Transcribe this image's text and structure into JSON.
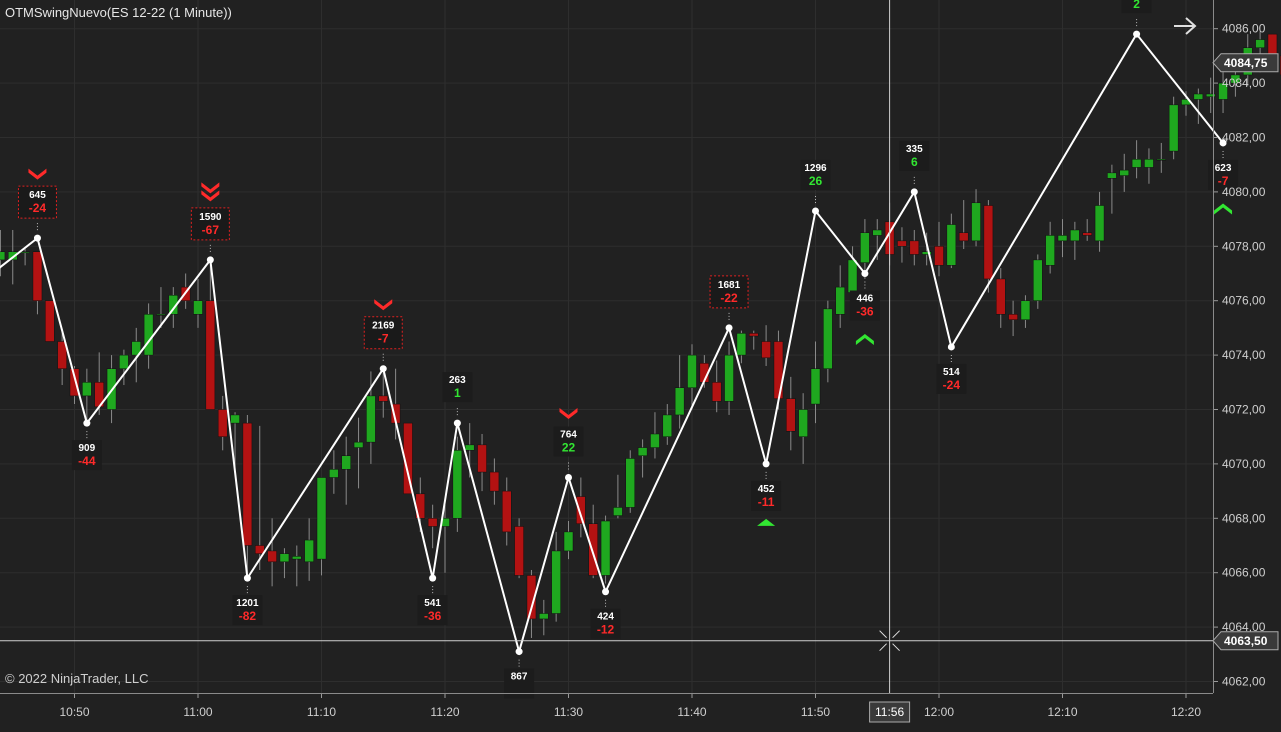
{
  "window": {
    "title": "OTMSwingNuevo(ES 12-22 (1 Minute))",
    "copyright": "© 2022 NinjaTrader, LLC"
  },
  "colors": {
    "background": "#212121",
    "grid": "#2e2e2e",
    "up_candle": "#1fa81f",
    "down_candle": "#b31212",
    "wick": "#8a8a8a",
    "swing_line": "#ffffff",
    "label_up": "#32e632",
    "label_down": "#ff2a2a",
    "axis_text": "#cfcfcf"
  },
  "chart_data": {
    "type": "candlestick",
    "ylim": [
      4061.6,
      4087.3
    ],
    "y_ticks": [
      "4062,00",
      "4064,00",
      "4066,00",
      "4068,00",
      "4070,00",
      "4072,00",
      "4074,00",
      "4076,00",
      "4078,00",
      "4080,00",
      "4082,00",
      "4084,00",
      "4086,00"
    ],
    "x_ticks": [
      {
        "label": "10:50",
        "min": 50
      },
      {
        "label": "11:00",
        "min": 60
      },
      {
        "label": "11:10",
        "min": 70
      },
      {
        "label": "11:20",
        "min": 80
      },
      {
        "label": "11:30",
        "min": 90
      },
      {
        "label": "11:40",
        "min": 100
      },
      {
        "label": "11:50",
        "min": 110
      },
      {
        "label": "12:00",
        "min": 120
      },
      {
        "label": "12:10",
        "min": 130
      },
      {
        "label": "12:20",
        "min": 140
      }
    ],
    "current_price": "4084,75",
    "crosshair_price": "4063,50",
    "crosshair_time": "11:56",
    "crosshair": {
      "min": 116,
      "price": 4063.5
    },
    "candles": [
      {
        "m": 43,
        "o": 4077.5,
        "h": 4078.2,
        "l": 4076.9,
        "c": 4077.6
      },
      {
        "m": 44,
        "o": 4077.5,
        "h": 4078.6,
        "l": 4076.9,
        "c": 4077.8
      },
      {
        "m": 45,
        "o": 4077.5,
        "h": 4078.6,
        "l": 4076.6,
        "c": 4077.8
      },
      {
        "m": 46,
        "o": 4077.8,
        "h": 4077.9,
        "l": 4077.3,
        "c": 4077.8
      },
      {
        "m": 47,
        "o": 4077.8,
        "h": 4077.8,
        "l": 4075.5,
        "c": 4076.0
      },
      {
        "m": 48,
        "o": 4076.0,
        "h": 4076.0,
        "l": 4074.5,
        "c": 4074.5
      },
      {
        "m": 49,
        "o": 4074.5,
        "h": 4074.9,
        "l": 4072.9,
        "c": 4073.5
      },
      {
        "m": 50,
        "o": 4073.5,
        "h": 4073.6,
        "l": 4072.2,
        "c": 4072.5
      },
      {
        "m": 51,
        "o": 4072.5,
        "h": 4073.5,
        "l": 4071.5,
        "c": 4073.0
      },
      {
        "m": 52,
        "o": 4073.0,
        "h": 4074.1,
        "l": 4071.8,
        "c": 4072.1
      },
      {
        "m": 53,
        "o": 4072.0,
        "h": 4074.0,
        "l": 4071.5,
        "c": 4073.5
      },
      {
        "m": 54,
        "o": 4073.5,
        "h": 4074.2,
        "l": 4072.9,
        "c": 4074.0
      },
      {
        "m": 55,
        "o": 4074.0,
        "h": 4075.0,
        "l": 4073.0,
        "c": 4074.5
      },
      {
        "m": 56,
        "o": 4074.0,
        "h": 4075.9,
        "l": 4073.5,
        "c": 4075.5
      },
      {
        "m": 57,
        "o": 4075.5,
        "h": 4076.5,
        "l": 4075.0,
        "c": 4075.5
      },
      {
        "m": 58,
        "o": 4075.5,
        "h": 4076.5,
        "l": 4075.0,
        "c": 4076.2
      },
      {
        "m": 59,
        "o": 4076.5,
        "h": 4077.0,
        "l": 4075.7,
        "c": 4076.0
      },
      {
        "m": 60,
        "o": 4075.5,
        "h": 4076.8,
        "l": 4075.0,
        "c": 4076.0
      },
      {
        "m": 61,
        "o": 4076.0,
        "h": 4077.5,
        "l": 4072.0,
        "c": 4072.0
      },
      {
        "m": 62,
        "o": 4072.0,
        "h": 4072.5,
        "l": 4070.5,
        "c": 4071.0
      },
      {
        "m": 63,
        "o": 4071.5,
        "h": 4071.9,
        "l": 4069.8,
        "c": 4071.8
      },
      {
        "m": 64,
        "o": 4071.5,
        "h": 4071.8,
        "l": 4065.9,
        "c": 4067.0
      },
      {
        "m": 65,
        "o": 4067.0,
        "h": 4071.4,
        "l": 4066.1,
        "c": 4066.7
      },
      {
        "m": 66,
        "o": 4066.8,
        "h": 4068.0,
        "l": 4065.5,
        "c": 4066.4
      },
      {
        "m": 67,
        "o": 4066.4,
        "h": 4066.9,
        "l": 4065.8,
        "c": 4066.7
      },
      {
        "m": 68,
        "o": 4066.5,
        "h": 4067.0,
        "l": 4065.5,
        "c": 4066.6
      },
      {
        "m": 69,
        "o": 4066.4,
        "h": 4068.0,
        "l": 4065.7,
        "c": 4067.2
      },
      {
        "m": 70,
        "o": 4066.5,
        "h": 4069.5,
        "l": 4065.9,
        "c": 4069.5
      },
      {
        "m": 71,
        "o": 4069.5,
        "h": 4070.5,
        "l": 4068.9,
        "c": 4069.8
      },
      {
        "m": 72,
        "o": 4069.8,
        "h": 4071.0,
        "l": 4068.5,
        "c": 4070.3
      },
      {
        "m": 73,
        "o": 4070.6,
        "h": 4071.7,
        "l": 4069.1,
        "c": 4070.8
      },
      {
        "m": 74,
        "o": 4070.8,
        "h": 4073.4,
        "l": 4070.0,
        "c": 4072.5
      },
      {
        "m": 75,
        "o": 4072.5,
        "h": 4073.5,
        "l": 4071.7,
        "c": 4072.3
      },
      {
        "m": 76,
        "o": 4072.2,
        "h": 4073.5,
        "l": 4070.9,
        "c": 4071.5
      },
      {
        "m": 77,
        "o": 4071.5,
        "h": 4071.5,
        "l": 4069.0,
        "c": 4068.9
      },
      {
        "m": 78,
        "o": 4068.9,
        "h": 4069.5,
        "l": 4067.5,
        "c": 4068.0
      },
      {
        "m": 79,
        "o": 4068.0,
        "h": 4068.5,
        "l": 4066.9,
        "c": 4067.7
      },
      {
        "m": 80,
        "o": 4067.7,
        "h": 4068.5,
        "l": 4066.0,
        "c": 4068.0
      },
      {
        "m": 81,
        "o": 4068.0,
        "h": 4071.0,
        "l": 4067.5,
        "c": 4070.5
      },
      {
        "m": 82,
        "o": 4070.5,
        "h": 4071.5,
        "l": 4069.5,
        "c": 4070.7
      },
      {
        "m": 83,
        "o": 4070.7,
        "h": 4071.1,
        "l": 4069.0,
        "c": 4069.7
      },
      {
        "m": 84,
        "o": 4069.7,
        "h": 4070.2,
        "l": 4068.5,
        "c": 4069.0
      },
      {
        "m": 85,
        "o": 4069.0,
        "h": 4069.5,
        "l": 4067.0,
        "c": 4067.5
      },
      {
        "m": 86,
        "o": 4067.7,
        "h": 4068.0,
        "l": 4065.8,
        "c": 4065.9
      },
      {
        "m": 87,
        "o": 4065.9,
        "h": 4066.1,
        "l": 4063.6,
        "c": 4064.3
      },
      {
        "m": 88,
        "o": 4064.3,
        "h": 4065.0,
        "l": 4063.7,
        "c": 4064.5
      },
      {
        "m": 89,
        "o": 4064.5,
        "h": 4067.5,
        "l": 4064.2,
        "c": 4066.8
      },
      {
        "m": 90,
        "o": 4066.8,
        "h": 4067.9,
        "l": 4066.5,
        "c": 4067.5
      },
      {
        "m": 91,
        "o": 4068.8,
        "h": 4069.5,
        "l": 4067.3,
        "c": 4067.8
      },
      {
        "m": 92,
        "o": 4067.8,
        "h": 4068.5,
        "l": 4065.8,
        "c": 4065.9
      },
      {
        "m": 93,
        "o": 4065.9,
        "h": 4068.1,
        "l": 4065.6,
        "c": 4067.9
      },
      {
        "m": 94,
        "o": 4068.1,
        "h": 4069.6,
        "l": 4068.0,
        "c": 4068.4
      },
      {
        "m": 95,
        "o": 4068.4,
        "h": 4070.5,
        "l": 4068.2,
        "c": 4070.2
      },
      {
        "m": 96,
        "o": 4070.3,
        "h": 4070.9,
        "l": 4069.5,
        "c": 4070.6
      },
      {
        "m": 97,
        "o": 4070.6,
        "h": 4071.9,
        "l": 4070.2,
        "c": 4071.1
      },
      {
        "m": 98,
        "o": 4071.0,
        "h": 4072.2,
        "l": 4070.7,
        "c": 4071.8
      },
      {
        "m": 99,
        "o": 4071.8,
        "h": 4074.0,
        "l": 4071.3,
        "c": 4072.8
      },
      {
        "m": 100,
        "o": 4072.8,
        "h": 4074.4,
        "l": 4072.0,
        "c": 4074.0
      },
      {
        "m": 101,
        "o": 4073.7,
        "h": 4074.0,
        "l": 4072.8,
        "c": 4073.0
      },
      {
        "m": 102,
        "o": 4073.0,
        "h": 4073.8,
        "l": 4071.9,
        "c": 4072.3
      },
      {
        "m": 103,
        "o": 4072.3,
        "h": 4074.5,
        "l": 4071.8,
        "c": 4074.0
      },
      {
        "m": 104,
        "o": 4074.0,
        "h": 4074.9,
        "l": 4073.7,
        "c": 4074.8
      },
      {
        "m": 105,
        "o": 4074.8,
        "h": 4074.9,
        "l": 4074.2,
        "c": 4074.7
      },
      {
        "m": 106,
        "o": 4074.5,
        "h": 4075.1,
        "l": 4073.6,
        "c": 4073.9
      },
      {
        "m": 107,
        "o": 4074.5,
        "h": 4074.9,
        "l": 4072.0,
        "c": 4072.4
      },
      {
        "m": 108,
        "o": 4072.4,
        "h": 4073.2,
        "l": 4070.5,
        "c": 4071.2
      },
      {
        "m": 109,
        "o": 4071.0,
        "h": 4072.6,
        "l": 4070.0,
        "c": 4072.0
      },
      {
        "m": 110,
        "o": 4072.2,
        "h": 4074.5,
        "l": 4071.5,
        "c": 4073.5
      },
      {
        "m": 111,
        "o": 4073.5,
        "h": 4076.0,
        "l": 4073.0,
        "c": 4075.7
      },
      {
        "m": 112,
        "o": 4075.5,
        "h": 4077.3,
        "l": 4075.0,
        "c": 4076.5
      },
      {
        "m": 113,
        "o": 4076.3,
        "h": 4078.0,
        "l": 4075.8,
        "c": 4077.5
      },
      {
        "m": 114,
        "o": 4077.4,
        "h": 4079.0,
        "l": 4076.8,
        "c": 4078.5
      },
      {
        "m": 115,
        "o": 4078.4,
        "h": 4079.0,
        "l": 4077.5,
        "c": 4078.6
      },
      {
        "m": 116,
        "o": 4078.9,
        "h": 4079.6,
        "l": 4077.3,
        "c": 4077.7
      },
      {
        "m": 117,
        "o": 4078.2,
        "h": 4078.7,
        "l": 4077.4,
        "c": 4078.0
      },
      {
        "m": 118,
        "o": 4078.2,
        "h": 4078.6,
        "l": 4077.3,
        "c": 4077.7
      },
      {
        "m": 119,
        "o": 4077.7,
        "h": 4078.5,
        "l": 4077.3,
        "c": 4077.8
      },
      {
        "m": 120,
        "o": 4078.0,
        "h": 4078.9,
        "l": 4076.9,
        "c": 4077.3
      },
      {
        "m": 121,
        "o": 4077.3,
        "h": 4079.2,
        "l": 4077.2,
        "c": 4078.8
      },
      {
        "m": 122,
        "o": 4078.5,
        "h": 4079.7,
        "l": 4077.9,
        "c": 4078.2
      },
      {
        "m": 123,
        "o": 4078.2,
        "h": 4080.1,
        "l": 4078.0,
        "c": 4079.6
      },
      {
        "m": 124,
        "o": 4079.5,
        "h": 4079.7,
        "l": 4076.3,
        "c": 4076.8
      },
      {
        "m": 125,
        "o": 4076.8,
        "h": 4077.2,
        "l": 4075.0,
        "c": 4075.5
      },
      {
        "m": 126,
        "o": 4075.5,
        "h": 4076.0,
        "l": 4074.7,
        "c": 4075.3
      },
      {
        "m": 127,
        "o": 4075.3,
        "h": 4076.2,
        "l": 4075.0,
        "c": 4076.0
      },
      {
        "m": 128,
        "o": 4076.0,
        "h": 4077.7,
        "l": 4075.7,
        "c": 4077.5
      },
      {
        "m": 129,
        "o": 4077.3,
        "h": 4078.9,
        "l": 4077.0,
        "c": 4078.4
      },
      {
        "m": 130,
        "o": 4078.2,
        "h": 4079.0,
        "l": 4077.6,
        "c": 4078.4
      },
      {
        "m": 131,
        "o": 4078.2,
        "h": 4078.9,
        "l": 4077.5,
        "c": 4078.6
      },
      {
        "m": 132,
        "o": 4078.5,
        "h": 4079.0,
        "l": 4078.2,
        "c": 4078.4
      },
      {
        "m": 133,
        "o": 4078.2,
        "h": 4080.0,
        "l": 4077.8,
        "c": 4079.5
      },
      {
        "m": 134,
        "o": 4080.5,
        "h": 4081.0,
        "l": 4079.2,
        "c": 4080.7
      },
      {
        "m": 135,
        "o": 4080.6,
        "h": 4081.4,
        "l": 4080.0,
        "c": 4080.8
      },
      {
        "m": 136,
        "o": 4080.9,
        "h": 4081.9,
        "l": 4080.5,
        "c": 4081.2
      },
      {
        "m": 137,
        "o": 4080.9,
        "h": 4081.6,
        "l": 4080.3,
        "c": 4081.2
      },
      {
        "m": 138,
        "o": 4081.2,
        "h": 4081.8,
        "l": 4080.7,
        "c": 4081.2
      },
      {
        "m": 139,
        "o": 4081.5,
        "h": 4083.5,
        "l": 4081.2,
        "c": 4083.2
      },
      {
        "m": 140,
        "o": 4083.2,
        "h": 4083.7,
        "l": 4082.8,
        "c": 4083.4
      },
      {
        "m": 141,
        "o": 4083.4,
        "h": 4083.8,
        "l": 4082.5,
        "c": 4083.6
      },
      {
        "m": 142,
        "o": 4083.5,
        "h": 4084.2,
        "l": 4082.9,
        "c": 4083.6
      },
      {
        "m": 143,
        "o": 4083.4,
        "h": 4084.4,
        "l": 4082.9,
        "c": 4084.0
      },
      {
        "m": 144,
        "o": 4084.0,
        "h": 4084.7,
        "l": 4083.5,
        "c": 4084.3
      },
      {
        "m": 145,
        "o": 4084.3,
        "h": 4085.8,
        "l": 4083.9,
        "c": 4085.3
      },
      {
        "m": 146,
        "o": 4085.3,
        "h": 4085.9,
        "l": 4084.4,
        "c": 4085.6
      },
      {
        "m": 147,
        "o": 4085.8,
        "h": 4085.8,
        "l": 4084.7,
        "c": 4084.8
      },
      {
        "m": 148,
        "o": 4085.0,
        "h": 4085.3,
        "l": 4084.1,
        "c": 4084.3
      },
      {
        "m": 149,
        "o": 4084.3,
        "h": 4084.9,
        "l": 4083.5,
        "c": 4084.1
      },
      {
        "m": 150,
        "o": 4084.2,
        "h": 4084.5,
        "l": 4083.2,
        "c": 4083.6
      },
      {
        "m": 151,
        "o": 4083.5,
        "h": 4084.0,
        "l": 4082.3,
        "c": 4082.5
      },
      {
        "m": 152,
        "o": 4082.6,
        "h": 4085.1,
        "l": 4082.2,
        "c": 4084.8
      }
    ],
    "swing_line": [
      {
        "m": 40.5,
        "p": 4076.0
      },
      {
        "m": 47,
        "p": 4078.3
      },
      {
        "m": 51,
        "p": 4071.5
      },
      {
        "m": 61,
        "p": 4077.5
      },
      {
        "m": 64,
        "p": 4065.8
      },
      {
        "m": 75,
        "p": 4073.5
      },
      {
        "m": 79,
        "p": 4065.8
      },
      {
        "m": 81,
        "p": 4071.5
      },
      {
        "m": 86,
        "p": 4063.1
      },
      {
        "m": 90,
        "p": 4069.5
      },
      {
        "m": 93,
        "p": 4065.3
      },
      {
        "m": 103,
        "p": 4075.0
      },
      {
        "m": 106,
        "p": 4070.0
      },
      {
        "m": 110,
        "p": 4079.3
      },
      {
        "m": 114,
        "p": 4077.0
      },
      {
        "m": 118,
        "p": 4080.0
      },
      {
        "m": 121,
        "p": 4074.3
      },
      {
        "m": 136,
        "p": 4085.8
      },
      {
        "m": 143,
        "p": 4081.8
      }
    ],
    "swing_labels": [
      {
        "m": 47,
        "p": 4078.3,
        "kind": "high",
        "volume": "645",
        "value": "-24",
        "boxed": true,
        "marker": "single-down"
      },
      {
        "m": 51,
        "p": 4071.5,
        "kind": "low",
        "volume": "909",
        "value": "-44"
      },
      {
        "m": 61,
        "p": 4077.5,
        "kind": "high",
        "volume": "1590",
        "value": "-67",
        "boxed": true,
        "marker": "double-down"
      },
      {
        "m": 64,
        "p": 4065.8,
        "kind": "low",
        "volume": "1201",
        "value": "-82"
      },
      {
        "m": 75,
        "p": 4073.5,
        "kind": "high",
        "volume": "2169",
        "value": "-7",
        "boxed": true,
        "marker": "single-down"
      },
      {
        "m": 79,
        "p": 4065.8,
        "kind": "low",
        "volume": "541",
        "value": "-36"
      },
      {
        "m": 81,
        "p": 4071.5,
        "kind": "high",
        "volume": "263",
        "value": "1"
      },
      {
        "m": 86,
        "p": 4063.1,
        "kind": "low",
        "volume": "867",
        "value": ""
      },
      {
        "m": 90,
        "p": 4069.5,
        "kind": "high",
        "volume": "764",
        "value": "22",
        "marker": "single-down"
      },
      {
        "m": 93,
        "p": 4065.3,
        "kind": "low",
        "volume": "424",
        "value": "-12"
      },
      {
        "m": 103,
        "p": 4075.0,
        "kind": "high",
        "volume": "1681",
        "value": "-22",
        "boxed": true
      },
      {
        "m": 106,
        "p": 4070.0,
        "kind": "low",
        "volume": "452",
        "value": "-11",
        "marker": "triangle-up"
      },
      {
        "m": 110,
        "p": 4079.3,
        "kind": "high",
        "volume": "1296",
        "value": "26"
      },
      {
        "m": 114,
        "p": 4077.0,
        "kind": "low",
        "volume": "446",
        "value": "-36",
        "marker": "single-up"
      },
      {
        "m": 118,
        "p": 4080.0,
        "kind": "high",
        "volume": "335",
        "value": "6"
      },
      {
        "m": 121,
        "p": 4074.3,
        "kind": "low",
        "volume": "514",
        "value": "-24"
      },
      {
        "m": 136,
        "p": 4085.8,
        "kind": "high",
        "volume": "",
        "value": "2"
      },
      {
        "m": 143,
        "p": 4081.8,
        "kind": "low",
        "volume": "623",
        "value": "-7",
        "marker": "single-up"
      }
    ]
  }
}
